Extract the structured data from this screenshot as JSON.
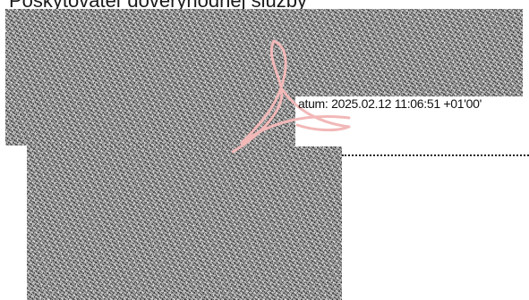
{
  "document": {
    "header_text": "Poskytovateľ dôveryhodnej služby",
    "signature_date_text": "atum: 2025.02.12 11:06:51 +01'00'",
    "signature_mark_color": "#f2b8b8",
    "signature_mark_icon": "adobe-acrobat-signature-icon"
  }
}
